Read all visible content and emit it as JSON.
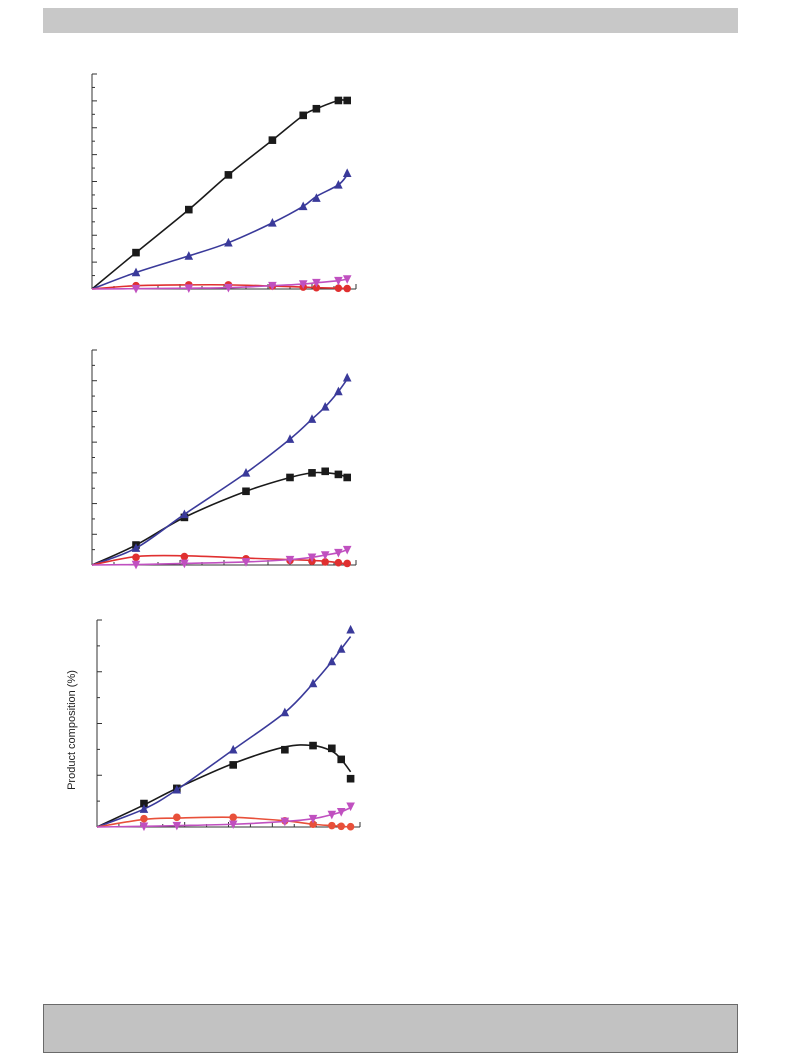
{
  "page": {
    "header_bar": "",
    "footer_box": ""
  },
  "chart_data": [
    {
      "type": "line",
      "xlabel": "",
      "ylabel": "",
      "series": [
        {
          "color": "#1a1a1a",
          "marker": "square",
          "x": [
            0,
            1,
            2.2,
            3.1,
            4.1,
            4.8,
            5.1,
            5.6,
            5.8
          ],
          "y": [
            0,
            22,
            48,
            69,
            90,
            105,
            109,
            114,
            114
          ],
          "fit": [
            0,
            22,
            48,
            69,
            90,
            105,
            109,
            114,
            114
          ]
        },
        {
          "color": "#3a3a9a",
          "marker": "triangle-up",
          "x": [
            0,
            1,
            2.2,
            3.1,
            4.1,
            4.8,
            5.1,
            5.6,
            5.8
          ],
          "y": [
            0,
            10,
            20,
            28,
            40,
            50,
            55,
            63,
            70
          ],
          "fit": [
            0,
            10,
            20,
            28,
            40,
            50,
            56,
            63,
            69
          ]
        },
        {
          "color": "#e03030",
          "marker": "circle",
          "x": [
            0,
            1,
            2.2,
            3.1,
            4.1,
            4.8,
            5.1,
            5.6,
            5.8
          ],
          "y": [
            0,
            2,
            2.5,
            2.5,
            1.8,
            1.2,
            0.8,
            0.5,
            0.3
          ],
          "fit": [
            0,
            2,
            2.5,
            2.5,
            1.8,
            1.2,
            0.8,
            0.5,
            0.3
          ]
        },
        {
          "color": "#c050c0",
          "marker": "triangle-down",
          "x": [
            0,
            1,
            2.2,
            3.1,
            4.1,
            4.8,
            5.1,
            5.6,
            5.8
          ],
          "y": [
            0,
            0.2,
            0.5,
            0.8,
            2,
            3,
            3.8,
            5,
            6
          ],
          "fit": [
            0,
            0.2,
            0.5,
            0.8,
            2,
            3,
            3.8,
            5,
            6
          ]
        }
      ]
    },
    {
      "type": "line",
      "xlabel": "",
      "ylabel": "",
      "series": [
        {
          "color": "#1a1a1a",
          "marker": "square",
          "x": [
            0,
            1,
            2.1,
            3.5,
            4.5,
            5,
            5.3,
            5.6,
            5.8
          ],
          "y": [
            0,
            13,
            31,
            48,
            57,
            60,
            61,
            59,
            57
          ],
          "fit": [
            0,
            13,
            31,
            48,
            57,
            60,
            60,
            59,
            57
          ]
        },
        {
          "color": "#3a3a9a",
          "marker": "triangle-up",
          "x": [
            0,
            1,
            2.1,
            3.5,
            4.5,
            5,
            5.3,
            5.6,
            5.8
          ],
          "y": [
            0,
            11,
            33,
            60,
            82,
            95,
            103,
            113,
            122
          ],
          "fit": [
            0,
            11,
            33,
            60,
            82,
            95,
            103,
            113,
            121
          ]
        },
        {
          "color": "#e03030",
          "marker": "circle",
          "x": [
            0,
            1,
            2.1,
            3.5,
            4.5,
            5,
            5.3,
            5.6,
            5.8
          ],
          "y": [
            0,
            5,
            5.5,
            4,
            3,
            2.5,
            2,
            1.5,
            1
          ],
          "fit": [
            0,
            5.5,
            6,
            4.5,
            3.5,
            3,
            2.5,
            1.5,
            0.5
          ]
        },
        {
          "color": "#c050c0",
          "marker": "triangle-down",
          "x": [
            0,
            1,
            2.1,
            3.5,
            4.5,
            5,
            5.3,
            5.6,
            5.8
          ],
          "y": [
            0,
            0.3,
            1,
            2,
            3.5,
            5,
            6.5,
            8,
            10
          ],
          "fit": [
            0,
            0.3,
            1,
            2,
            3.5,
            5,
            6.5,
            8,
            10
          ]
        }
      ]
    },
    {
      "type": "line",
      "xlabel": "",
      "ylabel": "Product composition (%)",
      "series": [
        {
          "color": "#1a1a1a",
          "marker": "square",
          "x": [
            0,
            1,
            1.7,
            2.9,
            4,
            4.6,
            5,
            5.2,
            5.4
          ],
          "y": [
            0,
            17,
            28,
            45,
            56,
            59,
            57,
            49,
            35
          ],
          "fit": [
            0,
            16,
            28,
            46,
            58,
            59,
            55,
            49,
            40
          ]
        },
        {
          "color": "#3a3a9a",
          "marker": "triangle-up",
          "x": [
            0,
            1,
            1.7,
            2.9,
            4,
            4.6,
            5,
            5.2,
            5.4
          ],
          "y": [
            0,
            13,
            27,
            56,
            83,
            104,
            120,
            129,
            143
          ],
          "fit": [
            0,
            13,
            27,
            56,
            83,
            104,
            120,
            129,
            138
          ]
        },
        {
          "color": "#e8503a",
          "marker": "circle",
          "x": [
            0,
            1,
            1.7,
            2.9,
            4,
            4.6,
            5,
            5.2,
            5.4
          ],
          "y": [
            0,
            6,
            7,
            7,
            4.5,
            2,
            1,
            0.5,
            0.2
          ],
          "fit": [
            0,
            5.5,
            6.5,
            7,
            4.5,
            2,
            1,
            0.5,
            0
          ]
        },
        {
          "color": "#c050c0",
          "marker": "triangle-down",
          "x": [
            0,
            1,
            1.7,
            2.9,
            4,
            4.6,
            5,
            5.2,
            5.4
          ],
          "y": [
            0,
            0.5,
            1,
            2,
            4,
            6,
            9,
            11,
            15
          ],
          "fit": [
            0,
            0.5,
            1,
            2,
            4,
            6,
            9,
            11,
            14
          ]
        }
      ]
    }
  ]
}
